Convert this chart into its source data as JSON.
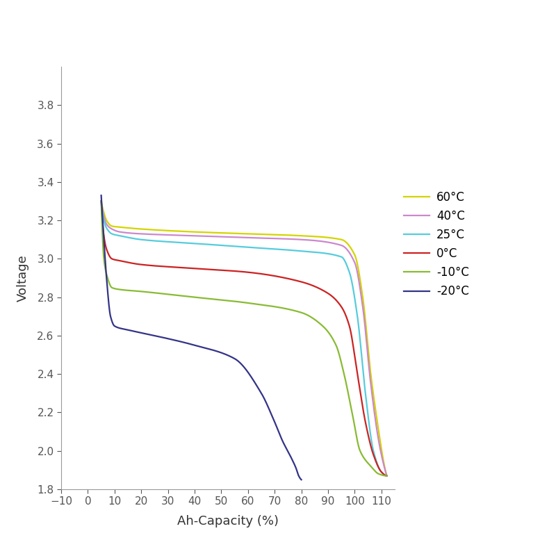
{
  "title": "",
  "xlabel": "Ah-Capacity (%)",
  "ylabel": "Voltage",
  "xlim": [
    -10,
    115
  ],
  "ylim": [
    1.8,
    4.0
  ],
  "xticks": [
    -10,
    0,
    10,
    20,
    30,
    40,
    50,
    60,
    70,
    80,
    90,
    100,
    110
  ],
  "yticks": [
    1.8,
    2.0,
    2.2,
    2.4,
    2.6,
    2.8,
    3.0,
    3.2,
    3.4,
    3.6,
    3.8
  ],
  "background_color": "#ffffff",
  "series": [
    {
      "label": "60°C",
      "color": "#d4d400"
    },
    {
      "label": "40°C",
      "color": "#cc88cc"
    },
    {
      "label": "25°C",
      "color": "#55ccdd"
    },
    {
      "label": "0°C",
      "color": "#cc2222"
    },
    {
      "label": "-10°C",
      "color": "#88bb33"
    },
    {
      "label": "-20°C",
      "color": "#333388"
    }
  ],
  "linewidth": 1.6
}
